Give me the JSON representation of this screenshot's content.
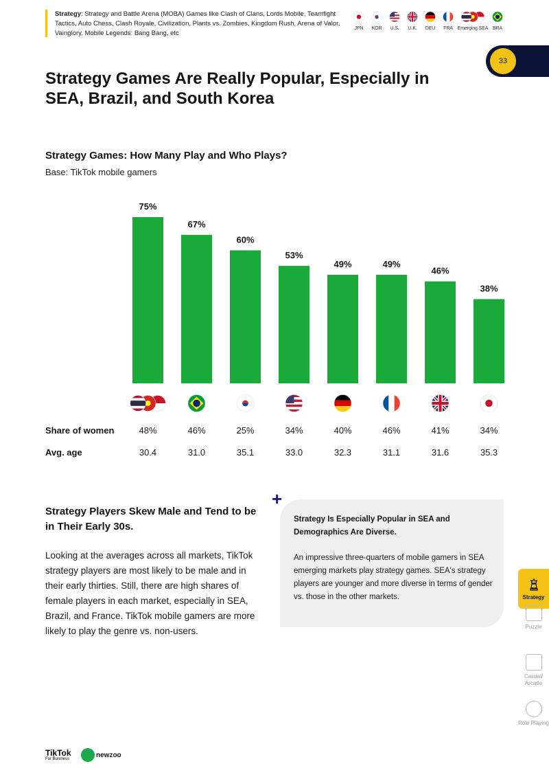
{
  "header": {
    "category": "Strategy",
    "description": ": Strategy and Battle Arena (MOBA) Games like Clash of Clans, Lords Mobile, Teamfight Tactics, Auto Chess, Clash Royale, Civilization, Plants vs. Zombies, Kingdom Rush, Arena of Valor, Vainglory, Mobile Legends: Bang Bang, etc",
    "markets": [
      {
        "label": "JPN",
        "flag": "japan"
      },
      {
        "label": "KOR",
        "flag": "south-korea"
      },
      {
        "label": "U.S.",
        "flag": "usa"
      },
      {
        "label": "U.K.",
        "flag": "uk"
      },
      {
        "label": "DEU",
        "flag": "germany"
      },
      {
        "label": "FRA",
        "flag": "france"
      },
      {
        "label": "Emerging SEA",
        "flag": "sea"
      },
      {
        "label": "BRA",
        "flag": "brazil"
      }
    ]
  },
  "page_number": "33",
  "title": "Strategy Games Are Really Popular, Especially in SEA, Brazil, and South Korea",
  "chart": {
    "title": "Strategy Games: How Many Play and Who Plays?",
    "subtitle": "Base: TikTok mobile gamers",
    "rows": {
      "women_label": "Share of women",
      "age_label": "Avg. age"
    }
  },
  "chart_data": {
    "type": "bar",
    "categories": [
      "Emerging SEA",
      "Brazil",
      "South Korea",
      "U.S.",
      "Germany",
      "France",
      "U.K.",
      "Japan"
    ],
    "flags": [
      "sea",
      "brazil",
      "south-korea",
      "usa",
      "germany",
      "france",
      "uk",
      "japan"
    ],
    "values": [
      75,
      67,
      60,
      53,
      49,
      49,
      46,
      38
    ],
    "value_labels": [
      "75%",
      "67%",
      "60%",
      "53%",
      "49%",
      "49%",
      "46%",
      "38%"
    ],
    "share_of_women": [
      "48%",
      "46%",
      "25%",
      "34%",
      "40%",
      "46%",
      "41%",
      "34%"
    ],
    "avg_age": [
      "30.4",
      "31.0",
      "35.1",
      "33.0",
      "32.3",
      "31.1",
      "31.6",
      "35.3"
    ],
    "ylim": [
      0,
      100
    ],
    "bar_color": "#1aaa3a"
  },
  "section": {
    "title": "Strategy Players Skew Male and Tend to be in Their Early 30s.",
    "body": "Looking at the averages across all markets, TikTok strategy players are most likely to be male and in their early thirties. Still, there are high shares of female players in each market, especially in SEA, Brazil, and France. TikTok mobile gamers are more likely to play the genre vs. non-users."
  },
  "callout": {
    "icon": "plus-icon",
    "heading": "Strategy Is Especially Popular in SEA and Demographics Are Diverse.",
    "body": "An impressive three-quarters of mobile gamers in SEA emerging markets play strategy games. SEA's strategy players are younger and more diverse in terms of gender vs. those in the other markets."
  },
  "nav": [
    {
      "label": "Strategy",
      "icon": "chess-piece-icon",
      "active": true
    },
    {
      "label": "Puzzle",
      "icon": "puzzle-icon",
      "active": false
    },
    {
      "label": "Casual/ Arcade",
      "icon": "arcade-icon",
      "active": false
    },
    {
      "label": "Role Playing",
      "icon": "role-playing-icon",
      "active": false
    }
  ],
  "footer": {
    "brand1": "TikTok",
    "brand1_sub": "For Business",
    "brand2": "newzoo"
  },
  "colors": {
    "accent_yellow": "#f2c315",
    "navy": "#0b1436",
    "bar_green": "#1aaa3a"
  }
}
